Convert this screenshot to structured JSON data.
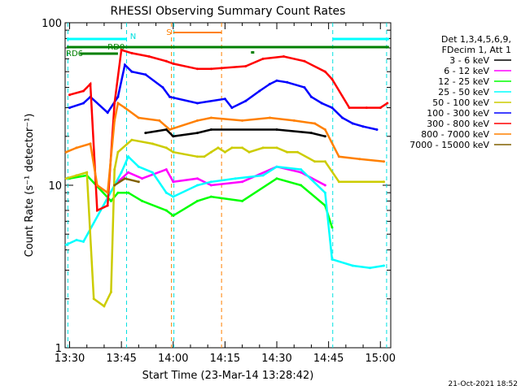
{
  "chart_data": {
    "type": "line",
    "title": "RHESSI Observing Summary Count Rates",
    "xlabel": "Start Time (23-Mar-14 13:28:42)",
    "ylabel": "Count Rate (s⁻¹ detector⁻¹)",
    "y_scale": "log",
    "ylim": [
      1,
      100
    ],
    "xlim_minutes": [
      88.7,
      183.0
    ],
    "x_ticks": [
      {
        "label": "13:30",
        "min": 90
      },
      {
        "label": "13:45",
        "min": 105
      },
      {
        "label": "14:00",
        "min": 120
      },
      {
        "label": "14:15",
        "min": 135
      },
      {
        "label": "14:30",
        "min": 150
      },
      {
        "label": "14:45",
        "min": 165
      },
      {
        "label": "15:00",
        "min": 180
      }
    ],
    "y_ticks": [
      {
        "label": "1",
        "value": 1
      },
      {
        "label": "10",
        "value": 10
      },
      {
        "label": "100",
        "value": 100
      }
    ],
    "legend_header": [
      "Det 1,3,4,5,6,9,",
      "FDecim 1, Att 1"
    ],
    "legend_placement": "right",
    "series": [
      {
        "name": "3 - 6 keV",
        "color": "#000000",
        "values": [
          [
            112,
            21
          ],
          [
            118,
            22
          ],
          [
            120,
            20
          ],
          [
            127,
            21
          ],
          [
            131,
            22
          ],
          [
            150,
            22
          ],
          [
            160,
            21
          ],
          [
            164,
            20
          ]
        ]
      },
      {
        "name": "6 - 12 keV",
        "color": "#ff00ff",
        "values": [
          [
            104,
            10.5
          ],
          [
            107,
            12
          ],
          [
            111,
            11
          ],
          [
            118,
            12.5
          ],
          [
            120,
            10.5
          ],
          [
            127,
            11
          ],
          [
            131,
            10
          ],
          [
            140,
            10.5
          ],
          [
            150,
            13
          ],
          [
            157,
            12
          ],
          [
            164,
            10
          ]
        ]
      },
      {
        "name": "12 - 25 keV",
        "color": "#00ff00",
        "values": [
          [
            90,
            11
          ],
          [
            95,
            11.5
          ],
          [
            102,
            8
          ],
          [
            104,
            9
          ],
          [
            107,
            9
          ],
          [
            111,
            8
          ],
          [
            118,
            7
          ],
          [
            120,
            6.5
          ],
          [
            127,
            8
          ],
          [
            131,
            8.5
          ],
          [
            140,
            8
          ],
          [
            150,
            11
          ],
          [
            157,
            10
          ],
          [
            164,
            7.5
          ],
          [
            166,
            5.5
          ]
        ]
      },
      {
        "name": "25 - 50 keV",
        "color": "#00ffff",
        "values": [
          [
            89,
            4.3
          ],
          [
            92,
            4.6
          ],
          [
            94,
            4.5
          ],
          [
            103,
            10
          ],
          [
            105,
            12
          ],
          [
            107,
            15
          ],
          [
            110,
            13
          ],
          [
            114,
            12
          ],
          [
            118,
            9
          ],
          [
            120,
            8.5
          ],
          [
            127,
            10
          ],
          [
            131,
            10.5
          ],
          [
            138,
            11
          ],
          [
            146,
            11.5
          ],
          [
            150,
            13
          ],
          [
            157,
            12.5
          ],
          [
            164,
            9
          ],
          [
            166,
            3.5
          ],
          [
            172,
            3.2
          ],
          [
            177,
            3.1
          ],
          [
            181,
            3.2
          ]
        ]
      },
      {
        "name": "50 - 100 keV",
        "color": "#cccc00",
        "values": [
          [
            89,
            11
          ],
          [
            92,
            11.5
          ],
          [
            95,
            12
          ],
          [
            97,
            2
          ],
          [
            100,
            1.8
          ],
          [
            102,
            2.2
          ],
          [
            103,
            12.5
          ],
          [
            104,
            16
          ],
          [
            108,
            19
          ],
          [
            114,
            18
          ],
          [
            118,
            17
          ],
          [
            120,
            16
          ],
          [
            127,
            15
          ],
          [
            129,
            15
          ],
          [
            131,
            16
          ],
          [
            133,
            17
          ],
          [
            135,
            16
          ],
          [
            137,
            17
          ],
          [
            140,
            17
          ],
          [
            142,
            16
          ],
          [
            146,
            17
          ],
          [
            150,
            17
          ],
          [
            153,
            16
          ],
          [
            156,
            16
          ],
          [
            161,
            14
          ],
          [
            164,
            14
          ],
          [
            168,
            10.5
          ],
          [
            181,
            10.5
          ]
        ]
      },
      {
        "name": "100 - 300 keV",
        "color": "#0000ff",
        "values": [
          [
            90,
            30
          ],
          [
            94,
            32
          ],
          [
            96,
            35
          ],
          [
            101,
            28
          ],
          [
            104,
            35
          ],
          [
            106,
            55
          ],
          [
            108,
            50
          ],
          [
            112,
            48
          ],
          [
            117,
            40
          ],
          [
            119,
            35
          ],
          [
            127,
            32
          ],
          [
            135,
            34
          ],
          [
            137,
            30
          ],
          [
            141,
            33
          ],
          [
            145,
            38
          ],
          [
            148,
            42
          ],
          [
            150,
            44
          ],
          [
            153,
            43
          ],
          [
            158,
            40
          ],
          [
            160,
            35
          ],
          [
            163,
            32
          ],
          [
            166,
            30
          ],
          [
            169,
            26
          ],
          [
            172,
            24
          ],
          [
            175,
            23
          ],
          [
            179,
            22
          ]
        ]
      },
      {
        "name": "300 - 800 keV",
        "color": "#ff0000",
        "values": [
          [
            90,
            36
          ],
          [
            94,
            38
          ],
          [
            96,
            42
          ],
          [
            98,
            7
          ],
          [
            101,
            7.5
          ],
          [
            103,
            32
          ],
          [
            105,
            68
          ],
          [
            108,
            65
          ],
          [
            113,
            62
          ],
          [
            118,
            58
          ],
          [
            120,
            56
          ],
          [
            127,
            52
          ],
          [
            131,
            52
          ],
          [
            141,
            54
          ],
          [
            146,
            60
          ],
          [
            152,
            62
          ],
          [
            158,
            58
          ],
          [
            164,
            50
          ],
          [
            166,
            45
          ],
          [
            171,
            30
          ],
          [
            176,
            30
          ],
          [
            180,
            30
          ],
          [
            182,
            32
          ]
        ]
      },
      {
        "name": "800 - 7000 keV",
        "color": "#ff8000",
        "values": [
          [
            89,
            16
          ],
          [
            92,
            17
          ],
          [
            96,
            18
          ],
          [
            98,
            10
          ],
          [
            101,
            9
          ],
          [
            103,
            25
          ],
          [
            104,
            32
          ],
          [
            106,
            30
          ],
          [
            110,
            26
          ],
          [
            116,
            25
          ],
          [
            119,
            22
          ],
          [
            127,
            25
          ],
          [
            131,
            26
          ],
          [
            140,
            25
          ],
          [
            148,
            26
          ],
          [
            155,
            25
          ],
          [
            161,
            24
          ],
          [
            164,
            22
          ],
          [
            168,
            15
          ],
          [
            174,
            14.5
          ],
          [
            181,
            14
          ]
        ]
      },
      {
        "name": "7000 - 15000 keV",
        "color": "#806000",
        "values": [
          [
            103,
            10
          ],
          [
            106,
            11
          ],
          [
            110,
            10.5
          ]
        ]
      }
    ],
    "annotations": {
      "N_label": "N",
      "S_label": "S",
      "RD0_label": "RD0",
      "RD6_label": "RD6",
      "vlines_cyan": [
        89.5,
        106.5,
        120.2,
        166.2,
        181.8
      ],
      "vlines_orange": [
        119.5,
        134.0
      ],
      "ylim_note": "log y axis 1 to 100"
    },
    "timestamp": "21-Oct-2021 18:52"
  }
}
